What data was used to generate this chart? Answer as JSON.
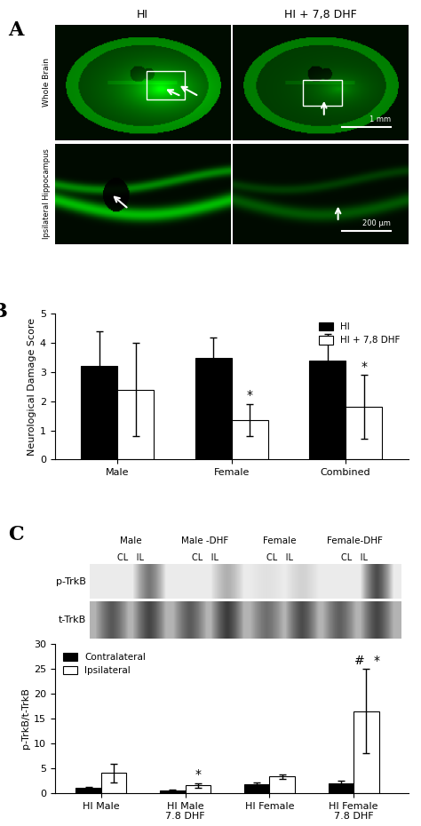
{
  "panel_A_label": "A",
  "panel_B_label": "B",
  "panel_C_label": "C",
  "panel_A": {
    "top_labels": [
      "HI",
      "HI + 7,8 DHF"
    ],
    "side_labels": [
      "Whole Brain",
      "Ipsilateral Hippocampus"
    ],
    "scale_bar_top": "1 mm",
    "scale_bar_bot": "200 μm"
  },
  "panel_B": {
    "groups": [
      "Male",
      "Female",
      "Combined"
    ],
    "HI_means": [
      3.2,
      3.5,
      3.4
    ],
    "HI_errs": [
      1.2,
      0.7,
      0.9
    ],
    "DHF_means": [
      2.4,
      1.35,
      1.8
    ],
    "DHF_errs": [
      1.6,
      0.55,
      1.1
    ],
    "ylabel": "Neurological Damage Score",
    "ylim": [
      0,
      5
    ],
    "yticks": [
      0,
      1,
      2,
      3,
      4,
      5
    ],
    "legend_HI": "HI",
    "legend_DHF": "HI + 7,8 DHF",
    "bar_color_HI": "#000000",
    "bar_color_DHF": "#ffffff",
    "bar_edge_color": "#000000"
  },
  "panel_C_blot": {
    "col_labels_top": [
      "Male",
      "Male -DHF",
      "Female",
      "Female-DHF"
    ],
    "col_labels_bot": [
      "CL   IL",
      "CL   IL",
      "CL   IL",
      "CL   IL"
    ],
    "row_labels": [
      "p-TrkB",
      "t-TrkB"
    ],
    "p_band_intensities": [
      0.0,
      0.55,
      0.0,
      0.28,
      0.05,
      0.12,
      0.0,
      0.75
    ],
    "t_band_intensities": [
      0.6,
      0.72,
      0.58,
      0.78,
      0.45,
      0.68,
      0.55,
      0.72
    ],
    "p_bg": 0.92,
    "t_bg": 0.7
  },
  "panel_C_bar": {
    "groups": [
      "HI Male",
      "HI Male\n7.8 DHF",
      "HI Female",
      "HI Female\n7.8 DHF"
    ],
    "contra_means": [
      1.0,
      0.5,
      1.8,
      2.0
    ],
    "contra_errs": [
      0.3,
      0.2,
      0.3,
      0.5
    ],
    "ipsi_means": [
      4.0,
      1.5,
      3.3,
      16.5
    ],
    "ipsi_errs": [
      1.8,
      0.5,
      0.5,
      8.5
    ],
    "ylabel": "p-TrkB/t-TrkB",
    "ylim": [
      0,
      30
    ],
    "yticks": [
      0,
      5,
      10,
      15,
      20,
      25,
      30
    ],
    "legend_contra": "Contralateral",
    "legend_ipsi": "Ipsilateral",
    "bar_color_contra": "#000000",
    "bar_color_ipsi": "#ffffff",
    "bar_edge_color": "#000000"
  }
}
